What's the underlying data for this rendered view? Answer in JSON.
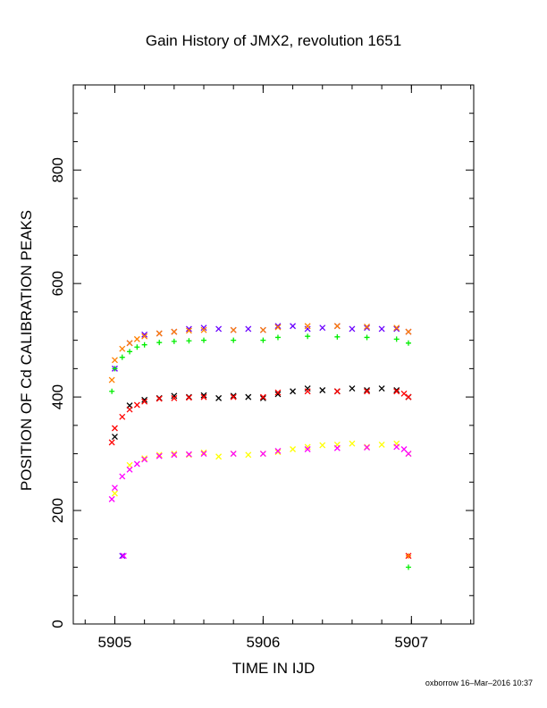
{
  "title": "Gain History of JMX2, revolution 1651",
  "footer": "oxborrow 16–Mar–2016 10:37",
  "chart_data": {
    "type": "scatter",
    "title": "Gain History of JMX2, revolution 1651",
    "xlabel": "TIME IN IJD",
    "ylabel": "POSITION OF Cd CALIBRATION PEAKS",
    "xlim": [
      5904.72,
      5907.42
    ],
    "ylim": [
      0,
      950
    ],
    "xticks": [
      5905,
      5906,
      5907
    ],
    "yticks": [
      0,
      200,
      400,
      600,
      800
    ],
    "grid": false,
    "legend": "none",
    "series": [
      {
        "color": "#6a00ff",
        "marker": "x",
        "x": [
          5905.0,
          5905.1,
          5905.2,
          5905.3,
          5905.4,
          5905.5,
          5905.6,
          5905.7,
          5905.8,
          5905.9,
          5906.0,
          5906.1,
          5906.2,
          5906.3,
          5906.4,
          5906.5,
          5906.6,
          5906.7,
          5906.8,
          5906.9,
          5906.98
        ],
        "y": [
          450,
          495,
          510,
          512,
          515,
          520,
          522,
          520,
          518,
          520,
          518,
          525,
          525,
          520,
          522,
          525,
          520,
          522,
          520,
          520,
          515
        ]
      },
      {
        "color": "#00ee00",
        "marker": "+",
        "x": [
          5904.98,
          5905.0,
          5905.05,
          5905.1,
          5905.15,
          5905.2,
          5905.3,
          5905.4,
          5905.5,
          5905.6,
          5905.8,
          5906.0,
          5906.1,
          5906.3,
          5906.5,
          5906.7,
          5906.9,
          5906.98
        ],
        "y": [
          410,
          450,
          470,
          480,
          488,
          492,
          496,
          498,
          499,
          500,
          500,
          500,
          505,
          507,
          506,
          505,
          502,
          495
        ]
      },
      {
        "color": "#ff7f00",
        "marker": "x",
        "x": [
          5904.98,
          5905.0,
          5905.05,
          5905.1,
          5905.15,
          5905.2,
          5905.3,
          5905.4,
          5905.5,
          5905.6,
          5905.8,
          5906.0,
          5906.1,
          5906.3,
          5906.5,
          5906.7,
          5906.9,
          5906.98
        ],
        "y": [
          430,
          465,
          485,
          495,
          502,
          507,
          512,
          515,
          517,
          518,
          518,
          518,
          523,
          525,
          525,
          524,
          522,
          515
        ]
      },
      {
        "color": "#000000",
        "marker": "x",
        "x": [
          5905.0,
          5905.1,
          5905.2,
          5905.3,
          5905.4,
          5905.5,
          5905.6,
          5905.7,
          5905.8,
          5905.9,
          5906.0,
          5906.1,
          5906.2,
          5906.3,
          5906.4,
          5906.5,
          5906.6,
          5906.7,
          5906.8,
          5906.9,
          5906.98
        ],
        "y": [
          330,
          385,
          395,
          398,
          402,
          400,
          403,
          398,
          402,
          400,
          398,
          405,
          410,
          415,
          412,
          410,
          415,
          412,
          415,
          412,
          400
        ]
      },
      {
        "color": "#ff0000",
        "marker": "x",
        "x": [
          5904.98,
          5905.0,
          5905.05,
          5905.1,
          5905.15,
          5905.2,
          5905.3,
          5905.4,
          5905.5,
          5905.6,
          5905.8,
          5906.0,
          5906.1,
          5906.3,
          5906.5,
          5906.7,
          5906.9,
          5906.95,
          5906.98
        ],
        "y": [
          320,
          345,
          365,
          378,
          386,
          392,
          397,
          398,
          399,
          400,
          400,
          400,
          408,
          410,
          410,
          410,
          410,
          406,
          400
        ]
      },
      {
        "color": "#ffff00",
        "marker": "x",
        "x": [
          5905.0,
          5905.1,
          5905.2,
          5905.3,
          5905.4,
          5905.5,
          5905.6,
          5905.7,
          5905.8,
          5905.9,
          5906.0,
          5906.1,
          5906.2,
          5906.3,
          5906.4,
          5906.5,
          5906.6,
          5906.7,
          5906.8,
          5906.9,
          5906.98
        ],
        "y": [
          230,
          280,
          292,
          298,
          300,
          298,
          302,
          295,
          300,
          298,
          300,
          303,
          308,
          312,
          315,
          316,
          318,
          312,
          316,
          318,
          300
        ]
      },
      {
        "color": "#ff00ff",
        "marker": "x",
        "x": [
          5904.98,
          5905.0,
          5905.05,
          5905.1,
          5905.15,
          5905.2,
          5905.3,
          5905.4,
          5905.5,
          5905.6,
          5905.8,
          5906.0,
          5906.1,
          5906.3,
          5906.5,
          5906.7,
          5906.9,
          5906.95,
          5906.98
        ],
        "y": [
          220,
          240,
          260,
          272,
          282,
          290,
          296,
          298,
          299,
          300,
          300,
          300,
          305,
          308,
          310,
          311,
          312,
          308,
          300
        ]
      }
    ],
    "outliers": [
      {
        "x": 5905.05,
        "y": 120,
        "color": "#6a00ff",
        "marker": "x"
      },
      {
        "x": 5905.06,
        "y": 120,
        "color": "#ff00ff",
        "marker": "x"
      },
      {
        "x": 5906.98,
        "y": 120,
        "color": "#ff0000",
        "marker": "x"
      },
      {
        "x": 5906.98,
        "y": 120,
        "color": "#ff7f00",
        "marker": "+"
      },
      {
        "x": 5906.98,
        "y": 100,
        "color": "#00ee00",
        "marker": "+"
      }
    ]
  }
}
